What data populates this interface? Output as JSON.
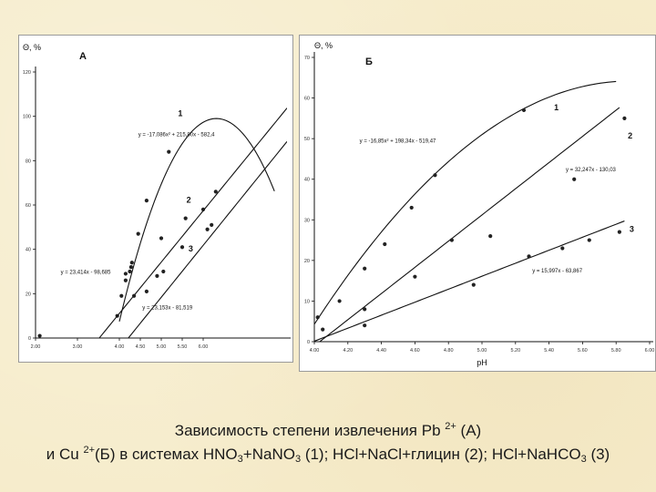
{
  "chart_data": [
    {
      "type": "scatter",
      "panel_letter": "А",
      "ylabel": "Θ, %",
      "xlim": [
        2.0,
        8.0
      ],
      "ylim": [
        0,
        120
      ],
      "xticks": [
        "2.00",
        "3.00",
        "4.00",
        "4.50",
        "5.00",
        "5.50",
        "6.00"
      ],
      "xtick_values": [
        2.0,
        3.0,
        4.0,
        4.5,
        5.0,
        5.5,
        6.0
      ],
      "yticks": [
        "0",
        "20",
        "40",
        "60",
        "80",
        "100",
        "120"
      ],
      "ytick_values": [
        0,
        20,
        40,
        60,
        80,
        100,
        120
      ],
      "series": [
        {
          "name": "1",
          "points": [
            [
              3.95,
              10
            ],
            [
              4.05,
              19
            ],
            [
              4.15,
              26
            ],
            [
              4.25,
              30
            ],
            [
              4.3,
              34
            ],
            [
              4.45,
              47
            ],
            [
              4.65,
              62
            ],
            [
              5.18,
              84
            ]
          ],
          "fit": {
            "kind": "quadratic",
            "a": -17.086,
            "b": 215.8,
            "c": -582.4,
            "x_range": [
              4.0,
              7.7
            ]
          },
          "equation": "y = -17,086x² + 215,80x - 582,4",
          "label_pos": [
            5.4,
            100
          ],
          "eq_pos": [
            4.45,
            91
          ]
        },
        {
          "name": "2",
          "points": [
            [
              2.1,
              1
            ],
            [
              4.15,
              29
            ],
            [
              4.28,
              32
            ],
            [
              5.0,
              45
            ],
            [
              5.58,
              54
            ],
            [
              6.0,
              58
            ],
            [
              6.3,
              66
            ]
          ],
          "fit": {
            "kind": "linear",
            "slope": 23.414,
            "intercept": -98.685
          },
          "equation": "y = 23,414x - 98,685",
          "label_pos": [
            5.6,
            61
          ],
          "eq_pos": [
            2.6,
            29
          ]
        },
        {
          "name": "3",
          "points": [
            [
              4.35,
              19
            ],
            [
              4.65,
              21
            ],
            [
              4.9,
              28
            ],
            [
              5.05,
              30
            ],
            [
              5.5,
              41
            ],
            [
              6.1,
              49
            ],
            [
              6.2,
              51
            ]
          ],
          "fit": {
            "kind": "linear",
            "slope": 23.153,
            "intercept": -81.519
          },
          "equation": "y = 23,153x - 81,519",
          "label_pos": [
            5.65,
            39
          ],
          "eq_pos": [
            4.55,
            13
          ]
        }
      ]
    },
    {
      "type": "scatter",
      "panel_letter": "Б",
      "ylabel": "Θ, %",
      "xlabel": "pH",
      "xlim": [
        4.0,
        6.0
      ],
      "ylim": [
        0,
        70
      ],
      "xticks": [
        "4.00",
        "4.20",
        "4.40",
        "4.60",
        "4.80",
        "5.00",
        "5.20",
        "5.40",
        "5.60",
        "5.80",
        "6.00"
      ],
      "xtick_values": [
        4.0,
        4.2,
        4.4,
        4.6,
        4.8,
        5.0,
        5.2,
        5.4,
        5.6,
        5.8,
        6.0
      ],
      "yticks": [
        "0",
        "10",
        "20",
        "30",
        "40",
        "50",
        "60",
        "70"
      ],
      "ytick_values": [
        0,
        10,
        20,
        30,
        40,
        50,
        60,
        70
      ],
      "series": [
        {
          "name": "1",
          "points": [
            [
              4.02,
              6
            ],
            [
              4.15,
              10
            ],
            [
              4.3,
              18
            ],
            [
              4.42,
              24
            ],
            [
              4.58,
              33
            ],
            [
              4.72,
              41
            ],
            [
              5.25,
              57
            ]
          ],
          "fit": {
            "kind": "quadratic",
            "a": -16.85,
            "b": 198.34,
            "c": -519.47,
            "x_range": [
              4.0,
              5.8
            ]
          },
          "equation": "y = -16,85x² + 198,34x - 519,47",
          "label_pos": [
            5.43,
            57
          ],
          "eq_pos": [
            4.27,
            49
          ]
        },
        {
          "name": "2",
          "points": [
            [
              4.05,
              3
            ],
            [
              4.3,
              8
            ],
            [
              4.6,
              16
            ],
            [
              4.82,
              25
            ],
            [
              5.05,
              26
            ],
            [
              5.55,
              40
            ],
            [
              5.85,
              55
            ]
          ],
          "fit": {
            "kind": "linear",
            "slope": 32.247,
            "intercept": -130.03,
            "x_range": [
              4.0,
              5.82
            ]
          },
          "equation": "y = 32,247x - 130,03",
          "label_pos": [
            5.87,
            50
          ],
          "eq_pos": [
            5.5,
            42
          ]
        },
        {
          "name": "3",
          "points": [
            [
              4.3,
              4
            ],
            [
              4.95,
              14
            ],
            [
              5.28,
              21
            ],
            [
              5.48,
              23
            ],
            [
              5.64,
              25
            ],
            [
              5.82,
              27
            ]
          ],
          "fit": {
            "kind": "linear",
            "slope": 15.997,
            "intercept": -63.867,
            "x_range": [
              4.0,
              5.85
            ]
          },
          "equation": "y = 15,997x - 63,867",
          "label_pos": [
            5.88,
            27
          ],
          "eq_pos": [
            5.3,
            17
          ]
        }
      ]
    }
  ],
  "caption": {
    "line1_text": "Зависимость степени извлечения Pb ",
    "line1_sup": "2+",
    "line1_end": " (А)",
    "line2_part1": "и Cu ",
    "line2_sup": "2+",
    "line2_part2": "(Б) в системах HNO",
    "sub1": "3",
    "line2_part3": "+NaNO",
    "sub2": "3",
    "line2_part4": " (1); HCl+NaCl+глицин (2); HCl+NaHCO",
    "sub3": "3",
    "line2_part5": " (3)"
  },
  "colors": {
    "ink": "#111111",
    "frame": "#9a9a9a",
    "background": "#f6eccb"
  }
}
